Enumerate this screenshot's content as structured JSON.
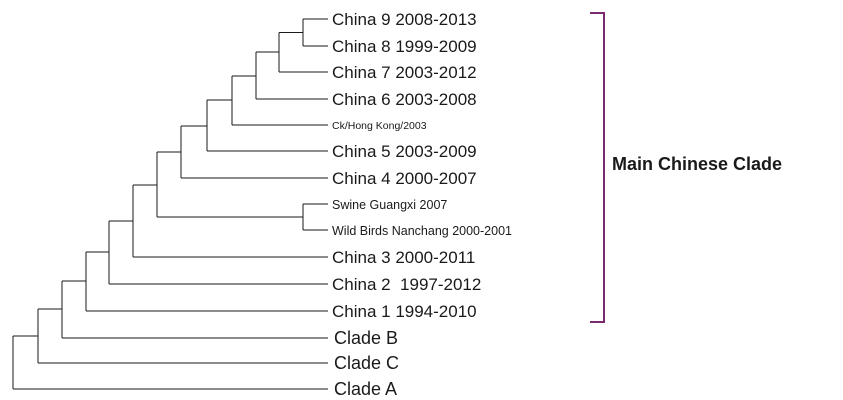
{
  "tree": {
    "clade_label": "Main Chinese Clade",
    "leaves": [
      {
        "id": "china9",
        "label": "China 9 2008-2013"
      },
      {
        "id": "china8",
        "label": "China 8 1999-2009"
      },
      {
        "id": "china7",
        "label": "China 7 2003-2012"
      },
      {
        "id": "china6",
        "label": "China 6 2003-2008"
      },
      {
        "id": "hk",
        "label": "Ck/Hong Kong/2003"
      },
      {
        "id": "china5",
        "label": "China 5 2003-2009"
      },
      {
        "id": "china4",
        "label": "China 4 2000-2007"
      },
      {
        "id": "swine",
        "label": "Swine Guangxi 2007"
      },
      {
        "id": "wild",
        "label": "Wild Birds Nanchang 2000-2001"
      },
      {
        "id": "china3",
        "label": "China 3 2000-2011"
      },
      {
        "id": "china2",
        "label": "China 2  1997-2012"
      },
      {
        "id": "china1",
        "label": "China 1 1994-2010"
      },
      {
        "id": "cladeB",
        "label": "Clade B"
      },
      {
        "id": "cladeC",
        "label": "Clade C"
      },
      {
        "id": "cladeA",
        "label": "Clade A"
      }
    ],
    "colors": {
      "branch": "#1a1a1a",
      "bracket": "#7a2a6e"
    }
  }
}
